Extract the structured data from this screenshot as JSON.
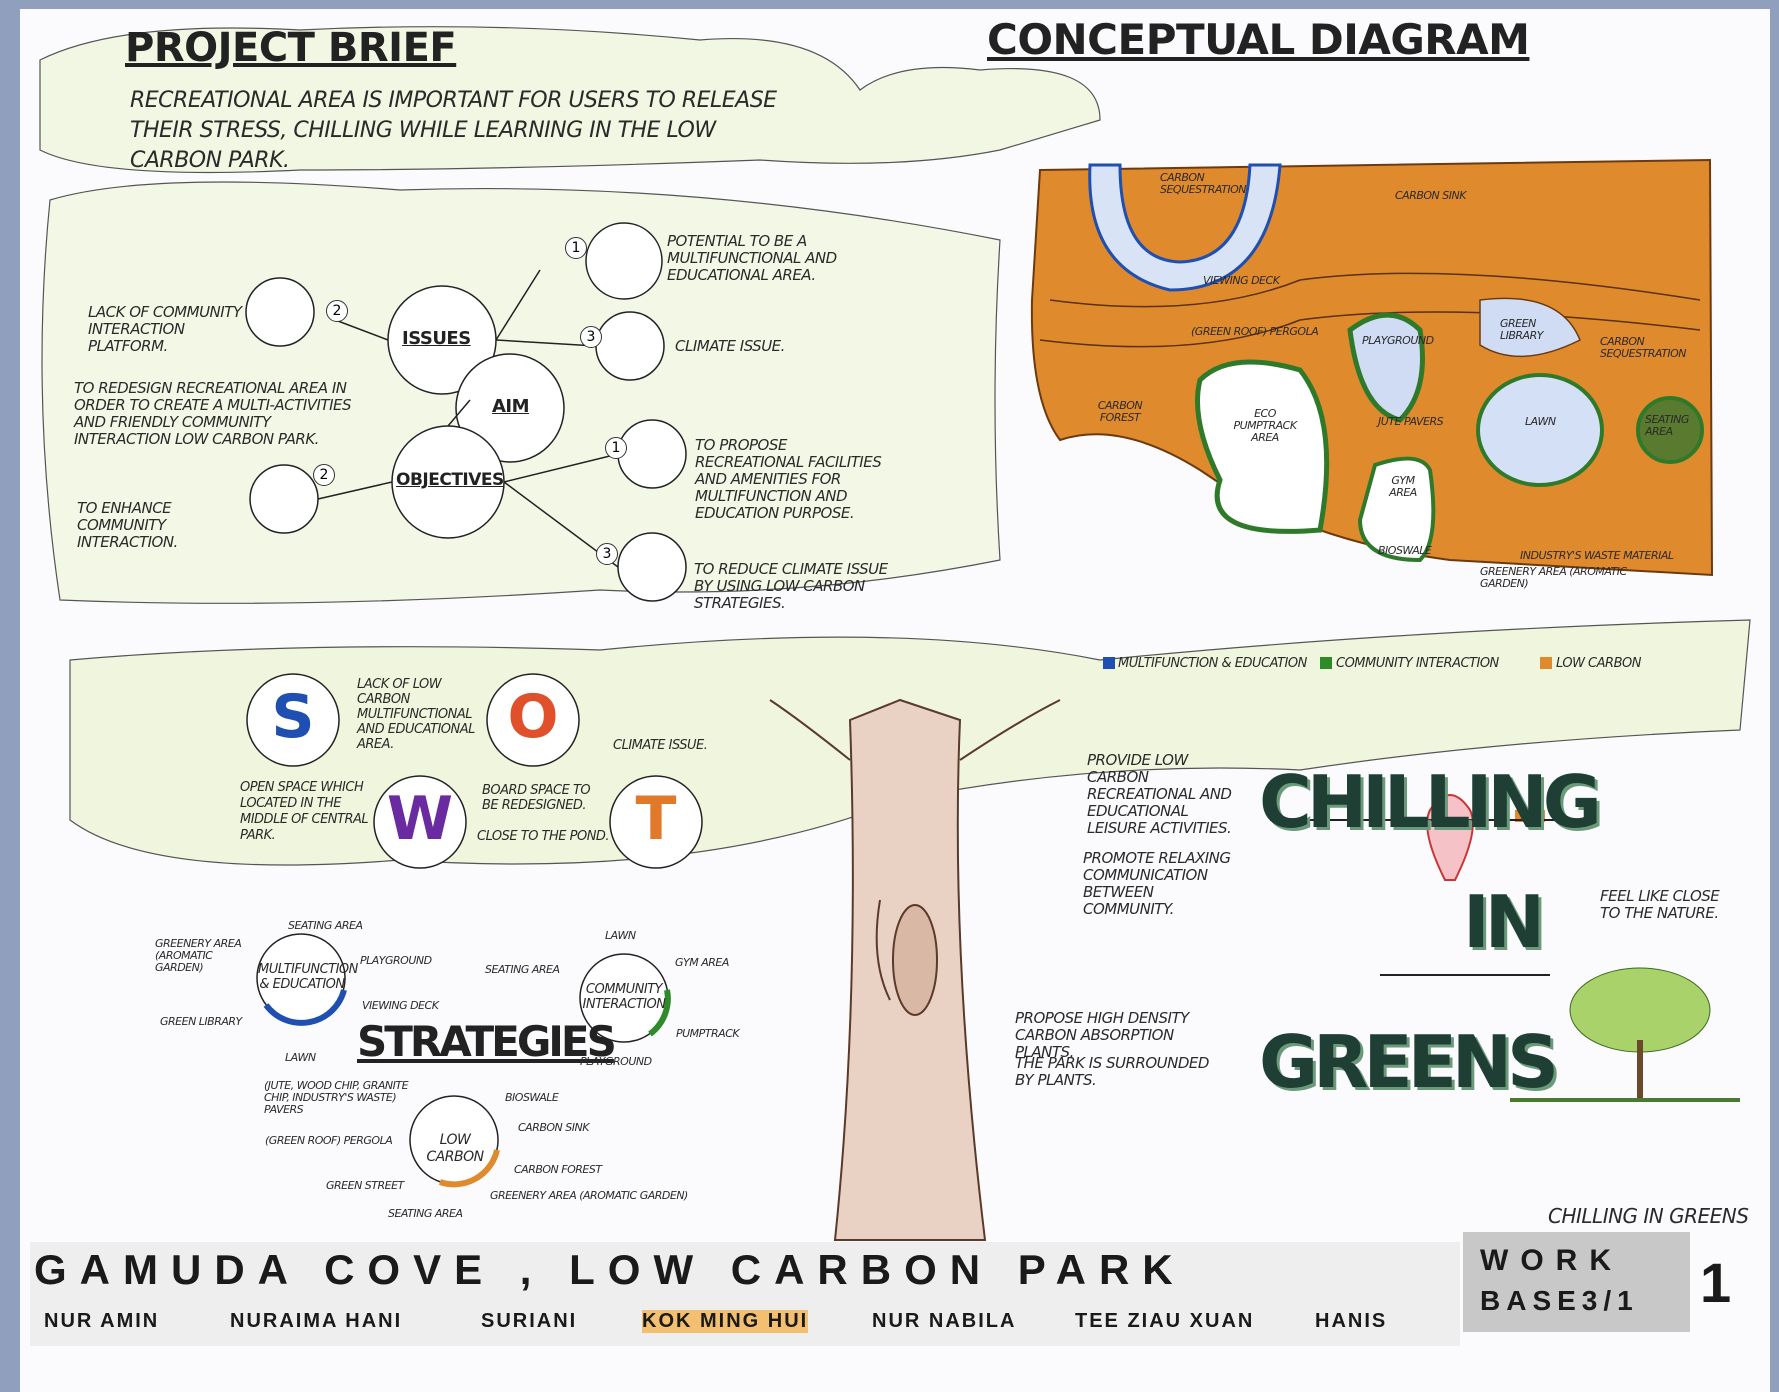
{
  "project_brief": {
    "title": "PROJECT BRIEF",
    "text": "RECREATIONAL AREA IS IMPORTANT FOR USERS TO RELEASE THEIR STRESS, CHILLING WHILE LEARNING IN THE LOW CARBON PARK."
  },
  "mind_map": {
    "issues": {
      "label": "ISSUES",
      "items": [
        {
          "number": "1",
          "text": "POTENTIAL TO BE A MULTIFUNCTIONAL AND EDUCATIONAL AREA."
        },
        {
          "number": "2",
          "text": "LACK OF COMMUNITY INTERACTION PLATFORM."
        },
        {
          "number": "3",
          "text": "CLIMATE ISSUE."
        }
      ]
    },
    "aim": {
      "label": "AIM",
      "text": "TO REDESIGN RECREATIONAL AREA IN ORDER TO CREATE A MULTI-ACTIVITIES AND FRIENDLY COMMUNITY INTERACTION LOW CARBON PARK."
    },
    "objectives": {
      "label": "OBJECTIVES",
      "items": [
        {
          "number": "1",
          "text": "TO PROPOSE RECREATIONAL FACILITIES AND AMENITIES FOR MULTIFUNCTION AND EDUCATION PURPOSE."
        },
        {
          "number": "2",
          "text": "TO ENHANCE COMMUNITY INTERACTION."
        },
        {
          "number": "3",
          "text": "TO REDUCE CLIMATE ISSUE BY USING LOW CARBON STRATEGIES."
        }
      ]
    }
  },
  "conceptual_diagram": {
    "title": "CONCEPTUAL DIAGRAM",
    "labels": [
      "CARBON SEQUESTRATION",
      "CARBON SINK",
      "VIEWING DECK",
      "(GREEN ROOF) PERGOLA",
      "PLAYGROUND",
      "GREEN LIBRARY",
      "CARBON SEQUESTRATION",
      "CARBON FOREST",
      "ECO PUMPTRACK AREA",
      "JUTE PAVERS",
      "LAWN",
      "SEATING AREA",
      "GYM AREA",
      "BIOSWALE",
      "INDUSTRY'S WASTE MATERIAL",
      "GREENERY AREA (AROMATIC GARDEN)"
    ],
    "legend": [
      "MULTIFUNCTION & EDUCATION",
      "COMMUNITY INTERACTION",
      "LOW CARBON"
    ]
  },
  "swot": {
    "s": {
      "letter": "S",
      "notes": [
        "LACK OF LOW CARBON MULTIFUNCTIONAL AND EDUCATIONAL AREA."
      ]
    },
    "w": {
      "letter": "W",
      "notes": [
        "OPEN SPACE WHICH LOCATED IN THE MIDDLE OF CENTRAL PARK."
      ]
    },
    "o": {
      "letter": "O",
      "notes": [
        "BOARD SPACE TO BE REDESIGNED.",
        "CLOSE TO THE POND."
      ]
    },
    "t": {
      "letter": "T",
      "notes": [
        "CLIMATE ISSUE."
      ]
    }
  },
  "strategies": {
    "title": "STRATEGIES",
    "multifunction": {
      "label": "MULTIFUNCTION & EDUCATION",
      "items": [
        "SEATING AREA",
        "PLAYGROUND",
        "VIEWING DECK",
        "LAWN",
        "GREEN LIBRARY",
        "GREENERY AREA (AROMATIC GARDEN)"
      ]
    },
    "community": {
      "label": "COMMUNITY INTERACTION",
      "items": [
        "LAWN",
        "GYM AREA",
        "PUMPTRACK",
        "PLAYGROUND",
        "SEATING AREA"
      ]
    },
    "low_carbon": {
      "label": "LOW CARBON",
      "items": [
        "(JUTE, WOOD CHIP, GRANITE CHIP, INDUSTRY'S WASTE) PAVERS",
        "BIOSWALE",
        "CARBON SINK",
        "CARBON FOREST",
        "GREENERY AREA (AROMATIC GARDEN)",
        "SEATING AREA",
        "GREEN STREET",
        "(GREEN ROOF) PERGOLA"
      ]
    }
  },
  "tagline": {
    "chilling": {
      "word": "CHILLING",
      "notes": [
        "PROVIDE LOW CARBON RECREATIONAL AND EDUCATIONAL LEISURE ACTIVITIES.",
        "PROMOTE RELAXING COMMUNICATION BETWEEN COMMUNITY."
      ]
    },
    "in": {
      "word": "IN",
      "notes": [
        "FEEL LIKE CLOSE TO THE NATURE."
      ]
    },
    "greens": {
      "word": "GREENS",
      "notes": [
        "PROPOSE HIGH DENSITY CARBON ABSORPTION PLANTS.",
        "THE PARK IS SURROUNDED BY PLANTS."
      ]
    },
    "signature": "CHILLING IN GREENS"
  },
  "footer": {
    "title": "GAMUDA COVE , LOW CARBON PARK",
    "members": [
      "NUR AMIN",
      "NURAIMA HANI",
      "SURIANI",
      "KOK MING HUI",
      "NUR NABILA",
      "TEE ZIAU XUAN",
      "HANIS"
    ],
    "work": "WORK",
    "base": "BASE3/1",
    "sheet": "1"
  }
}
